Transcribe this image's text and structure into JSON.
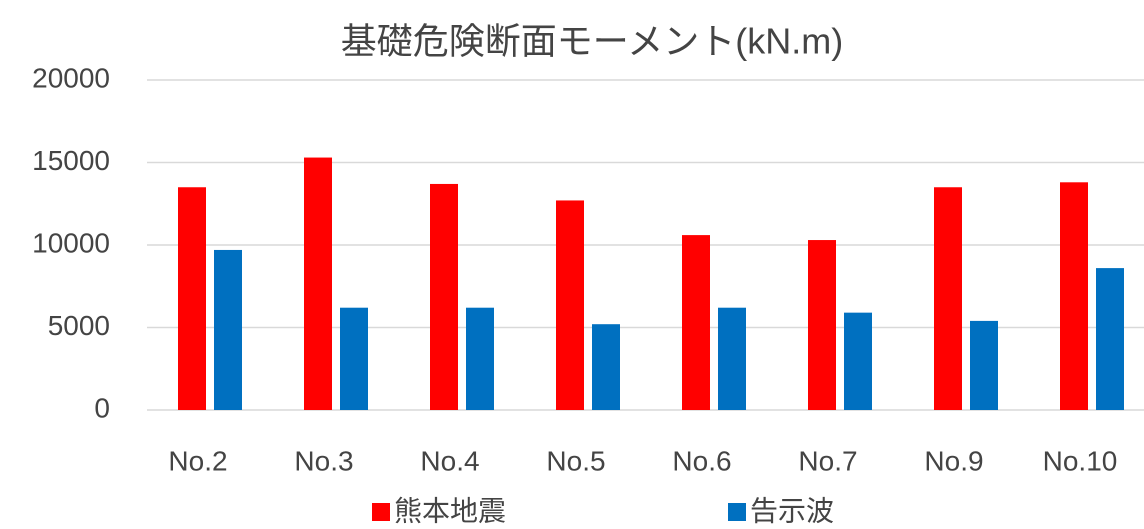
{
  "chart_data": {
    "type": "bar",
    "title": "基礎危険断面モーメント(kN.m)",
    "categories": [
      "No.2",
      "No.3",
      "No.4",
      "No.5",
      "No.6",
      "No.7",
      "No.9",
      "No.10"
    ],
    "series": [
      {
        "name": "熊本地震",
        "color": "#ff0000",
        "values": [
          13500,
          15300,
          13700,
          12700,
          10600,
          10300,
          13500,
          13800
        ]
      },
      {
        "name": "告示波",
        "color": "#0070c0",
        "values": [
          9700,
          6200,
          6200,
          5200,
          6200,
          5900,
          5400,
          8600
        ]
      }
    ],
    "ylim": [
      0,
      20000
    ],
    "yticks": [
      0,
      5000,
      10000,
      15000,
      20000
    ],
    "grid": true
  }
}
